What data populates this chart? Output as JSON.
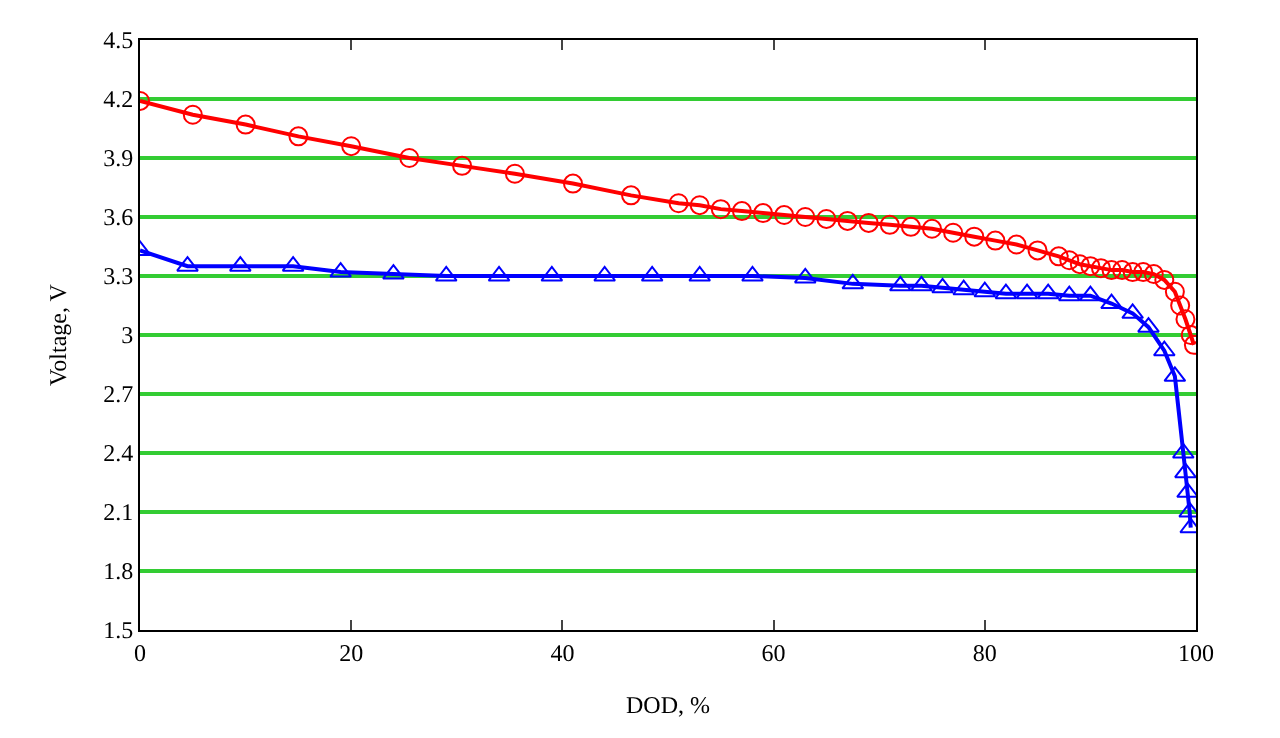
{
  "chart_data": {
    "type": "line",
    "xlabel": "DOD, %",
    "ylabel": "Voltage, V",
    "xlim": [
      0,
      100
    ],
    "xticks": [
      0,
      20,
      40,
      60,
      80,
      100
    ],
    "ylim": [
      1.5,
      4.5
    ],
    "yticks": [
      1.5,
      1.8,
      2.1,
      2.4,
      2.7,
      3,
      3.3,
      3.6,
      3.9,
      4.2,
      4.5
    ],
    "grid": "y",
    "line_style": "solid",
    "series": [
      {
        "color": "#ff0000",
        "marker": "circle",
        "x": [
          0,
          5,
          10,
          15,
          20,
          25.5,
          30.5,
          35.5,
          41,
          46.5,
          51,
          53,
          55,
          57,
          59,
          61,
          63,
          65,
          67,
          69,
          71,
          73,
          75,
          77,
          79,
          81,
          83,
          85,
          87,
          88,
          89,
          90,
          91,
          92,
          93,
          94,
          95,
          96,
          97,
          98,
          98.5,
          99,
          99.5,
          99.8
        ],
        "values": [
          4.19,
          4.12,
          4.07,
          4.01,
          3.96,
          3.9,
          3.86,
          3.82,
          3.77,
          3.71,
          3.67,
          3.66,
          3.64,
          3.63,
          3.62,
          3.61,
          3.6,
          3.59,
          3.58,
          3.57,
          3.56,
          3.55,
          3.54,
          3.52,
          3.5,
          3.48,
          3.46,
          3.43,
          3.4,
          3.38,
          3.36,
          3.35,
          3.34,
          3.33,
          3.33,
          3.32,
          3.32,
          3.31,
          3.28,
          3.22,
          3.15,
          3.08,
          3.0,
          2.95
        ]
      },
      {
        "color": "#0000ff",
        "marker": "triangle",
        "x": [
          0,
          4.5,
          9.5,
          14.5,
          19,
          24,
          29,
          34,
          39,
          44,
          48.5,
          53,
          58,
          63,
          67.5,
          72,
          74,
          76,
          78,
          80,
          82,
          84,
          86,
          88,
          90,
          92,
          94,
          95.5,
          97,
          98,
          98.8,
          99,
          99.2,
          99.4,
          99.5
        ],
        "values": [
          3.43,
          3.35,
          3.35,
          3.35,
          3.32,
          3.31,
          3.3,
          3.3,
          3.3,
          3.3,
          3.3,
          3.3,
          3.3,
          3.29,
          3.26,
          3.25,
          3.25,
          3.24,
          3.23,
          3.22,
          3.21,
          3.21,
          3.21,
          3.2,
          3.2,
          3.16,
          3.11,
          3.04,
          2.92,
          2.79,
          2.4,
          2.3,
          2.2,
          2.1,
          2.02
        ]
      }
    ]
  }
}
